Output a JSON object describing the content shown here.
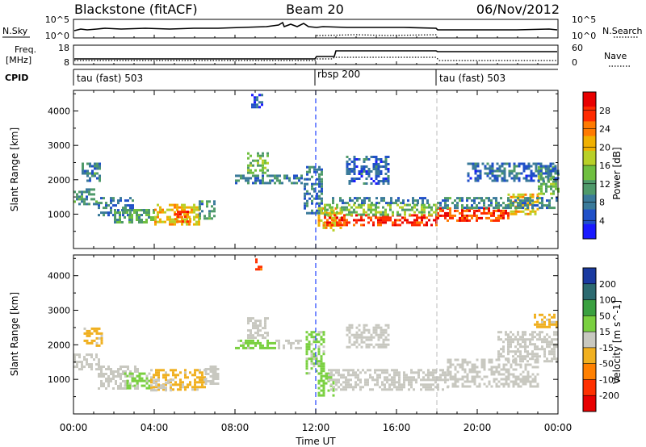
{
  "header": {
    "station": "Blackstone (fitACF)",
    "beam": "Beam 20",
    "date": "06/Nov/2012"
  },
  "time_axis": {
    "label": "Time UT",
    "ticks": [
      "00:00",
      "04:00",
      "08:00",
      "12:00",
      "16:00",
      "20:00",
      "00:00"
    ],
    "range_hours": [
      0,
      24
    ]
  },
  "nsky_panel": {
    "left_label": "N.Sky",
    "left_ticks": [
      "10^5",
      "10^0"
    ],
    "right_label": "N.Search",
    "right_ticks": [
      "10^5",
      "10^0"
    ]
  },
  "freq_panel": {
    "left_label_line1": "Freq.",
    "left_label_line2": "[MHz]",
    "left_ticks": [
      "18",
      "8"
    ],
    "right_label": "Nave",
    "right_ticks": [
      "60",
      "0"
    ]
  },
  "cpid_panel": {
    "label": "CPID",
    "segments": [
      {
        "text": "tau (fast) 503",
        "start_hour": 0
      },
      {
        "text": "rbsp 200",
        "start_hour": 12
      },
      {
        "text": "tau (fast) 503",
        "start_hour": 18
      }
    ]
  },
  "colors": {
    "power_scale": [
      "#1a1aff",
      "#2050c8",
      "#3a7a9a",
      "#4f9a6a",
      "#6fbf40",
      "#b8d028",
      "#f0b000",
      "#ff7a00",
      "#ff2a00",
      "#e80000"
    ],
    "velocity_scale": [
      "#1a3aa0",
      "#2c6a70",
      "#3aa040",
      "#7ad040",
      "#c8c8c0",
      "#f0b020",
      "#ff8000",
      "#ff3000",
      "#e80000"
    ]
  },
  "chart_data": [
    {
      "type": "heatmap",
      "name": "power",
      "ylabel": "Slant Range [km]",
      "yticks": [
        1000,
        2000,
        3000,
        4000
      ],
      "ylim": [
        0,
        4600
      ],
      "xlim": [
        0,
        24
      ],
      "colorbar": {
        "label": "Power [dB]",
        "ticks": [
          "4",
          "8",
          "12",
          "16",
          "20",
          "24",
          "28"
        ],
        "range": [
          0,
          32
        ]
      },
      "regions": [
        {
          "t0": 0.0,
          "t1": 1.2,
          "r0": 1300,
          "r1": 1750,
          "value": 10
        },
        {
          "t0": 0.4,
          "t1": 1.3,
          "r0": 2000,
          "r1": 2500,
          "value": 9
        },
        {
          "t0": 1.2,
          "t1": 3.0,
          "r0": 1000,
          "r1": 1500,
          "value": 8
        },
        {
          "t0": 2.0,
          "t1": 4.0,
          "r0": 750,
          "r1": 1150,
          "value": 12
        },
        {
          "t0": 4.0,
          "t1": 6.2,
          "r0": 700,
          "r1": 1300,
          "value": 20
        },
        {
          "t0": 5.0,
          "t1": 5.8,
          "r0": 800,
          "r1": 1100,
          "value": 26
        },
        {
          "t0": 6.2,
          "t1": 7.0,
          "r0": 900,
          "r1": 1400,
          "value": 10
        },
        {
          "t0": 8.6,
          "t1": 9.6,
          "r0": 2200,
          "r1": 2800,
          "value": 14
        },
        {
          "t0": 8.0,
          "t1": 11.3,
          "r0": 1900,
          "r1": 2150,
          "value": 9
        },
        {
          "t0": 8.8,
          "t1": 9.4,
          "r0": 4100,
          "r1": 4500,
          "value": 5
        },
        {
          "t0": 11.4,
          "t1": 12.3,
          "r0": 1000,
          "r1": 2400,
          "value": 8
        },
        {
          "t0": 12.1,
          "t1": 13.2,
          "r0": 500,
          "r1": 1200,
          "value": 20
        },
        {
          "t0": 12.4,
          "t1": 18.0,
          "r0": 700,
          "r1": 1000,
          "value": 28
        },
        {
          "t0": 12.4,
          "t1": 18.0,
          "r0": 1000,
          "r1": 1300,
          "value": 14
        },
        {
          "t0": 12.8,
          "t1": 17.5,
          "r0": 1300,
          "r1": 1500,
          "value": 8
        },
        {
          "t0": 13.5,
          "t1": 15.6,
          "r0": 1900,
          "r1": 2700,
          "value": 6
        },
        {
          "t0": 18.0,
          "t1": 21.5,
          "r0": 800,
          "r1": 1200,
          "value": 27
        },
        {
          "t0": 21.5,
          "t1": 23.0,
          "r0": 1000,
          "r1": 1600,
          "value": 20
        },
        {
          "t0": 18.0,
          "t1": 24.0,
          "r0": 1200,
          "r1": 1500,
          "value": 9
        },
        {
          "t0": 23.0,
          "t1": 24.0,
          "r0": 1600,
          "r1": 2400,
          "value": 14
        },
        {
          "t0": 19.5,
          "t1": 24.0,
          "r0": 2000,
          "r1": 2500,
          "value": 7
        }
      ]
    },
    {
      "type": "heatmap",
      "name": "velocity",
      "ylabel": "Slant Range [km]",
      "yticks": [
        1000,
        2000,
        3000,
        4000
      ],
      "ylim": [
        0,
        4600
      ],
      "xlim": [
        0,
        24
      ],
      "colorbar": {
        "label": "Velocity [m s^-1]",
        "ticks": [
          "200",
          "100",
          "50",
          "15",
          "-15",
          "-50",
          "-100",
          "-200"
        ],
        "range": [
          -250,
          250
        ]
      },
      "regions": [
        {
          "t0": 0.0,
          "t1": 1.3,
          "r0": 1300,
          "r1": 1750,
          "value": 0
        },
        {
          "t0": 0.5,
          "t1": 1.4,
          "r0": 2000,
          "r1": 2500,
          "value": -40
        },
        {
          "t0": 1.2,
          "t1": 3.2,
          "r0": 750,
          "r1": 1400,
          "value": 0
        },
        {
          "t0": 2.5,
          "t1": 3.8,
          "r0": 750,
          "r1": 1200,
          "value": 40
        },
        {
          "t0": 3.8,
          "t1": 6.5,
          "r0": 700,
          "r1": 1300,
          "value": -40
        },
        {
          "t0": 3.8,
          "t1": 4.8,
          "r0": 700,
          "r1": 1000,
          "value": 0
        },
        {
          "t0": 6.5,
          "t1": 7.2,
          "r0": 900,
          "r1": 1400,
          "value": 0
        },
        {
          "t0": 8.6,
          "t1": 9.6,
          "r0": 2200,
          "r1": 2800,
          "value": 0
        },
        {
          "t0": 8.0,
          "t1": 10.0,
          "r0": 1900,
          "r1": 2150,
          "value": 40
        },
        {
          "t0": 10.0,
          "t1": 11.3,
          "r0": 1900,
          "r1": 2150,
          "value": 0
        },
        {
          "t0": 9.0,
          "t1": 9.4,
          "r0": 4200,
          "r1": 4500,
          "value": -150
        },
        {
          "t0": 11.5,
          "t1": 12.4,
          "r0": 1200,
          "r1": 2400,
          "value": 40
        },
        {
          "t0": 12.1,
          "t1": 12.9,
          "r0": 500,
          "r1": 1200,
          "value": 60
        },
        {
          "t0": 12.6,
          "t1": 18.5,
          "r0": 700,
          "r1": 1300,
          "value": 0
        },
        {
          "t0": 13.5,
          "t1": 15.6,
          "r0": 1900,
          "r1": 2600,
          "value": 0
        },
        {
          "t0": 18.5,
          "t1": 23.0,
          "r0": 800,
          "r1": 1600,
          "value": 0
        },
        {
          "t0": 21.0,
          "t1": 24.0,
          "r0": 1500,
          "r1": 2400,
          "value": 0
        },
        {
          "t0": 22.8,
          "t1": 24.0,
          "r0": 2500,
          "r1": 2900,
          "value": -40
        }
      ]
    }
  ]
}
